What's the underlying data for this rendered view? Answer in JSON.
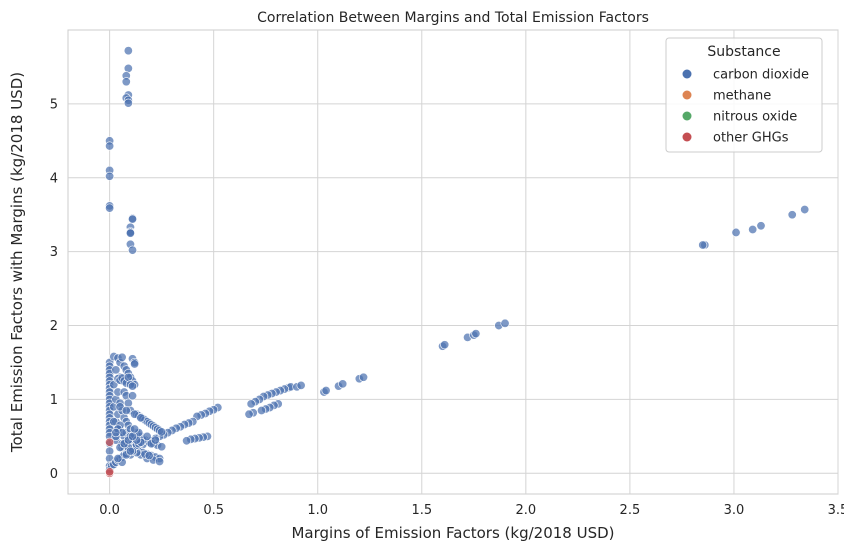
{
  "chart_data": {
    "type": "scatter",
    "title": "Correlation Between Margins and Total Emission Factors",
    "xlabel": "Margins of Emission Factors (kg/2018 USD)",
    "ylabel": "Total Emission Factors with Margins (kg/2018 USD)",
    "xlim": [
      -0.2,
      3.5
    ],
    "ylim": [
      -0.28,
      6.0
    ],
    "xticks": [
      "0.0",
      "0.5",
      "1.0",
      "1.5",
      "2.0",
      "2.5",
      "3.0",
      "3.5"
    ],
    "xtick_values": [
      0,
      0.5,
      1.0,
      1.5,
      2.0,
      2.5,
      3.0,
      3.5
    ],
    "yticks": [
      "0",
      "1",
      "2",
      "3",
      "4",
      "5"
    ],
    "ytick_values": [
      0,
      1,
      2,
      3,
      4,
      5
    ],
    "grid": true,
    "legend": {
      "title": "Substance",
      "placement": "top-right",
      "entries": [
        {
          "name": "carbon dioxide",
          "color": "#4c72b0"
        },
        {
          "name": "methane",
          "color": "#dd8452"
        },
        {
          "name": "nitrous oxide",
          "color": "#55a868"
        },
        {
          "name": "other GHGs",
          "color": "#c44e52"
        }
      ]
    },
    "series": [
      {
        "name": "carbon dioxide",
        "color": "#4c72b0",
        "x": [
          0.09,
          0.09,
          0.08,
          0.08,
          0.09,
          0.08,
          0.09,
          0.09,
          0.0,
          0.0,
          0.0,
          0.0,
          0.0,
          0.0,
          0.11,
          0.11,
          0.1,
          0.1,
          0.1,
          0.1,
          0.1,
          0.11,
          2.86,
          2.85,
          3.01,
          3.09,
          3.13,
          3.28,
          3.34,
          1.6,
          1.61,
          1.72,
          1.75,
          1.76,
          1.87,
          1.9,
          1.03,
          1.04,
          1.1,
          1.12,
          1.2,
          1.22,
          0.86,
          0.87,
          0.84,
          0.82,
          0.8,
          0.78,
          0.76,
          0.74,
          0.72,
          0.7,
          0.68,
          0.9,
          0.92,
          0.81,
          0.79,
          0.77,
          0.75,
          0.73,
          0.69,
          0.67,
          0.52,
          0.5,
          0.48,
          0.46,
          0.44,
          0.42,
          0.4,
          0.38,
          0.36,
          0.34,
          0.32,
          0.3,
          0.28,
          0.26,
          0.24,
          0.22,
          0.2,
          0.18,
          0.16,
          0.14,
          0.12,
          0.47,
          0.45,
          0.43,
          0.41,
          0.39,
          0.37,
          0.0,
          0.0,
          0.0,
          0.0,
          0.0,
          0.0,
          0.0,
          0.0,
          0.0,
          0.0,
          0.0,
          0.0,
          0.0,
          0.0,
          0.0,
          0.0,
          0.0,
          0.0,
          0.0,
          0.0,
          0.0,
          0.0,
          0.0,
          0.0,
          0.0,
          0.0,
          0.02,
          0.02,
          0.02,
          0.03,
          0.03,
          0.03,
          0.04,
          0.04,
          0.04,
          0.05,
          0.05,
          0.05,
          0.05,
          0.06,
          0.06,
          0.06,
          0.07,
          0.07,
          0.07,
          0.08,
          0.08,
          0.08,
          0.09,
          0.09,
          0.09,
          0.1,
          0.1,
          0.11,
          0.11,
          0.11,
          0.12,
          0.12,
          0.04,
          0.05,
          0.06,
          0.07,
          0.08,
          0.09,
          0.1,
          0.11,
          0.12,
          0.05,
          0.07,
          0.09,
          0.11,
          0.06,
          0.08,
          0.1,
          0.13,
          0.14,
          0.15,
          0.16,
          0.17,
          0.18,
          0.19,
          0.2,
          0.21,
          0.22,
          0.23,
          0.24,
          0.25,
          0.13,
          0.15,
          0.17,
          0.19,
          0.21,
          0.23,
          0.25,
          0.14,
          0.16,
          0.18,
          0.2,
          0.22,
          0.24,
          0.03,
          0.06,
          0.09,
          0.12,
          0.15,
          0.18,
          0.21,
          0.24,
          0.04,
          0.08,
          0.12,
          0.16,
          0.2,
          0.02,
          0.05,
          0.1,
          0.14,
          0.18,
          0.22,
          0.07,
          0.11,
          0.13,
          0.17,
          0.19,
          0.01,
          0.02,
          0.03,
          0.04,
          0.05,
          0.06,
          0.07,
          0.08,
          0.09,
          0.1,
          0.11,
          0.12,
          0.13,
          0.14,
          0.15,
          0.05,
          0.08,
          0.12,
          0.15,
          0.04,
          0.06,
          0.1,
          0.13,
          0.03,
          0.07,
          0.09,
          0.11,
          0.06,
          0.04,
          0.08,
          0.1,
          0.05,
          0.07,
          0.09,
          0.11,
          0.03,
          0.12
        ],
        "y": [
          5.72,
          5.48,
          5.38,
          5.3,
          5.12,
          5.08,
          5.05,
          5.01,
          4.5,
          4.43,
          4.1,
          4.02,
          3.62,
          3.59,
          3.45,
          3.44,
          3.33,
          3.27,
          3.26,
          3.25,
          3.1,
          3.02,
          3.09,
          3.09,
          3.26,
          3.3,
          3.35,
          3.5,
          3.57,
          1.72,
          1.74,
          1.84,
          1.87,
          1.89,
          2.0,
          2.03,
          1.1,
          1.12,
          1.18,
          1.21,
          1.28,
          1.3,
          1.16,
          1.17,
          1.14,
          1.12,
          1.1,
          1.08,
          1.06,
          1.04,
          1.0,
          0.97,
          0.94,
          1.17,
          1.19,
          0.94,
          0.92,
          0.89,
          0.87,
          0.85,
          0.82,
          0.8,
          0.89,
          0.86,
          0.84,
          0.81,
          0.79,
          0.77,
          0.7,
          0.68,
          0.66,
          0.63,
          0.61,
          0.58,
          0.55,
          0.52,
          0.5,
          0.47,
          0.44,
          0.42,
          0.39,
          0.36,
          0.33,
          0.5,
          0.49,
          0.48,
          0.47,
          0.46,
          0.44,
          1.5,
          1.45,
          1.4,
          1.35,
          1.3,
          1.25,
          1.2,
          1.15,
          1.1,
          1.05,
          1.0,
          0.95,
          0.9,
          0.85,
          0.8,
          0.75,
          0.7,
          0.65,
          0.6,
          0.55,
          0.5,
          0.4,
          0.3,
          0.2,
          0.1,
          0.05,
          1.58,
          1.2,
          0.9,
          1.4,
          1.0,
          0.7,
          1.56,
          1.1,
          0.8,
          1.5,
          1.3,
          0.95,
          0.6,
          1.57,
          1.25,
          0.85,
          1.45,
          1.1,
          0.75,
          1.4,
          1.05,
          0.7,
          1.35,
          0.95,
          0.65,
          1.3,
          0.85,
          1.55,
          1.25,
          1.05,
          1.5,
          1.2,
          1.28,
          1.26,
          1.29,
          1.25,
          1.22,
          1.3,
          1.2,
          1.18,
          1.48,
          0.55,
          0.5,
          0.45,
          0.4,
          0.35,
          0.3,
          0.25,
          0.8,
          0.78,
          0.76,
          0.74,
          0.72,
          0.7,
          0.68,
          0.66,
          0.64,
          0.62,
          0.6,
          0.58,
          0.56,
          0.55,
          0.5,
          0.45,
          0.42,
          0.4,
          0.38,
          0.36,
          0.3,
          0.28,
          0.26,
          0.24,
          0.22,
          0.2,
          0.45,
          0.4,
          0.35,
          0.3,
          0.25,
          0.2,
          0.18,
          0.16,
          0.6,
          0.55,
          0.5,
          0.45,
          0.4,
          0.7,
          0.65,
          0.6,
          0.55,
          0.5,
          0.45,
          0.35,
          0.3,
          0.28,
          0.26,
          0.24,
          0.1,
          0.12,
          0.15,
          0.18,
          0.2,
          0.22,
          0.25,
          0.27,
          0.3,
          0.32,
          0.34,
          0.36,
          0.38,
          0.4,
          0.42,
          0.9,
          0.85,
          0.8,
          0.75,
          0.6,
          0.55,
          0.5,
          0.45,
          0.5,
          0.4,
          0.35,
          0.3,
          0.15,
          0.2,
          0.25,
          0.3,
          0.35,
          0.4,
          0.45,
          0.5,
          0.55,
          0.6
        ]
      },
      {
        "name": "other GHGs",
        "color": "#c44e52",
        "x": [
          0.0,
          0.0,
          0.0
        ],
        "y": [
          0.0,
          0.02,
          0.42
        ]
      }
    ]
  }
}
